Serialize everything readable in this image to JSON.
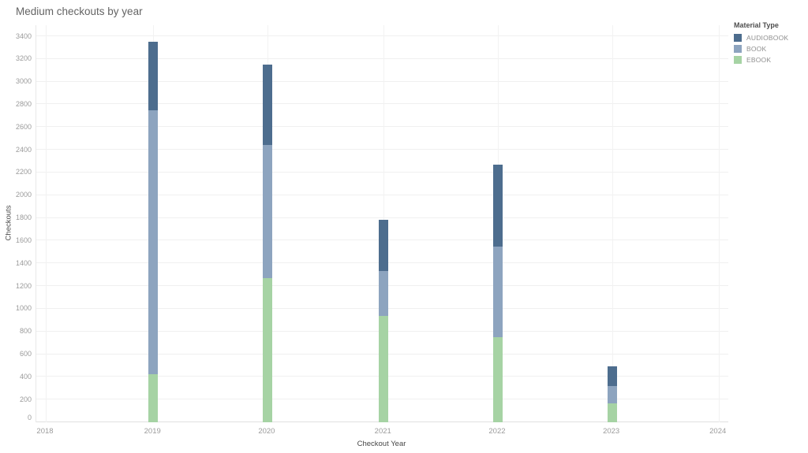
{
  "title": "Medium checkouts by year",
  "axes": {
    "x_title": "Checkout Year",
    "y_title": "Checkouts"
  },
  "legend": {
    "title": "Material Type",
    "items": [
      {
        "label": "AUDIOBOOK",
        "color": "#4d6d8e"
      },
      {
        "label": "BOOK",
        "color": "#8da4bf"
      },
      {
        "label": "EBOOK",
        "color": "#a6d3a4"
      }
    ]
  },
  "colors": {
    "audiobook": "#4d6d8e",
    "book": "#8da4bf",
    "ebook": "#a6d3a4",
    "gridline": "#f0f0f0",
    "axis_line": "#e0e0e0",
    "tick_text": "#9b9b9b",
    "title_text": "#646464"
  },
  "chart_data": {
    "type": "bar",
    "stacked": true,
    "title": "Medium checkouts by year",
    "xlabel": "Checkout Year",
    "ylabel": "Checkouts",
    "x_ticks": [
      2018,
      2019,
      2020,
      2021,
      2022,
      2023,
      2024
    ],
    "y_ticks": [
      0,
      200,
      400,
      600,
      800,
      1000,
      1200,
      1400,
      1600,
      1800,
      2000,
      2200,
      2400,
      2600,
      2800,
      3000,
      3200,
      3400
    ],
    "ylim": [
      0,
      3400
    ],
    "grid": true,
    "legend_position": "top-right",
    "categories": [
      2019,
      2020,
      2021,
      2022,
      2023
    ],
    "series": [
      {
        "name": "EBOOK",
        "color": "#a6d3a4",
        "values": [
          420,
          1270,
          940,
          750,
          170
        ]
      },
      {
        "name": "BOOK",
        "color": "#8da4bf",
        "values": [
          2330,
          1170,
          390,
          800,
          150
        ]
      },
      {
        "name": "AUDIOBOOK",
        "color": "#4d6d8e",
        "values": [
          600,
          710,
          450,
          720,
          170
        ]
      }
    ],
    "totals": {
      "2019": 3350,
      "2020": 3150,
      "2021": 1780,
      "2022": 2270,
      "2023": 490
    }
  }
}
